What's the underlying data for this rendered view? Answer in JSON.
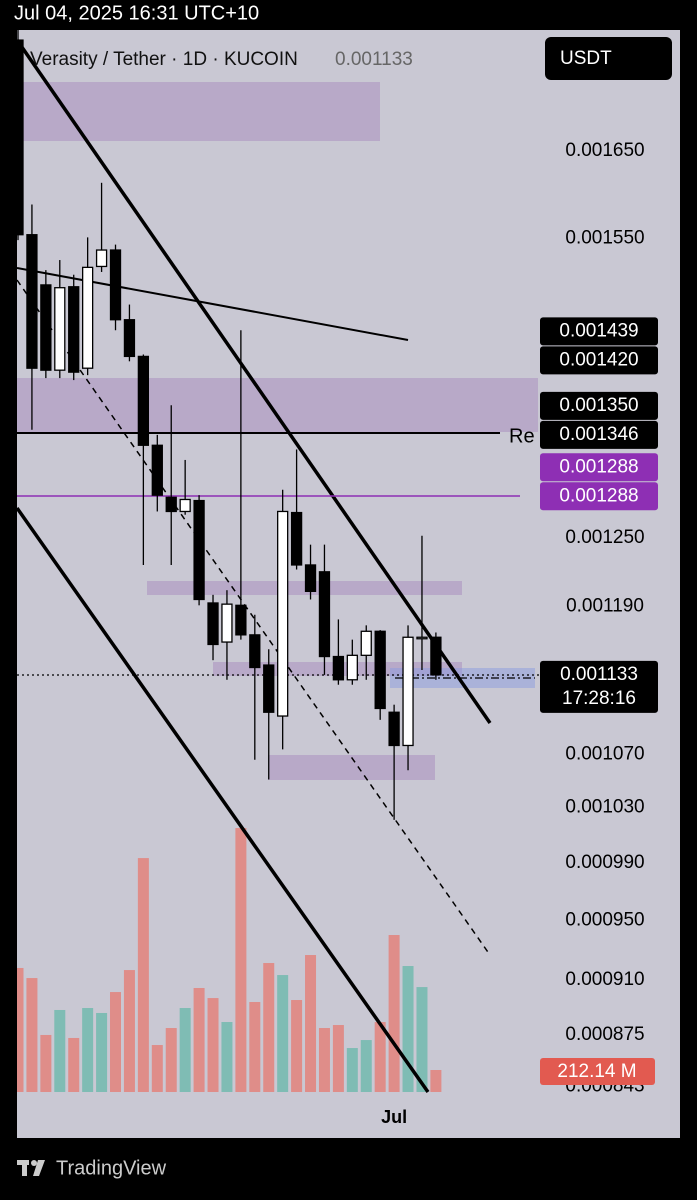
{
  "status_bar": "Jul 04, 2025 16:31 UTC+10",
  "currency_button": "USDT",
  "brand": "TradingView",
  "chart_data": {
    "type": "candlestick",
    "title": "Verasity / Tether · 1D · KUCOIN",
    "last_price": 0.001133,
    "countdown": "17:28:16",
    "annotations": [
      "Re"
    ],
    "y_scale": "log",
    "ylim": [
      0.000835,
      0.0018
    ],
    "yticks": [
      {
        "value": 0.00165,
        "label": "0.001650"
      },
      {
        "value": 0.00155,
        "label": "0.001550"
      },
      {
        "value": 0.00125,
        "label": "0.001250"
      },
      {
        "value": 0.00119,
        "label": "0.001190"
      },
      {
        "value": 0.00107,
        "label": "0.001070"
      },
      {
        "value": 0.00103,
        "label": "0.001030"
      },
      {
        "value": 0.00099,
        "label": "0.000990"
      },
      {
        "value": 0.00095,
        "label": "0.000950"
      },
      {
        "value": 0.00091,
        "label": "0.000910"
      },
      {
        "value": 0.000875,
        "label": "0.000875"
      },
      {
        "value": 0.000843,
        "label": "0.000843"
      }
    ],
    "price_labels": [
      {
        "value": 0.001439,
        "label": "0.001439",
        "color": "#000000"
      },
      {
        "value": 0.00142,
        "label": "0.001420",
        "color": "#000000"
      },
      {
        "value": 0.00135,
        "label": "0.001350",
        "color": "#000000"
      },
      {
        "value": 0.001346,
        "label": "0.001346",
        "color": "#000000"
      },
      {
        "value": 0.001288,
        "label": "0.001288",
        "color": "#8e2fb4"
      },
      {
        "value": 0.001288,
        "label": "0.001288",
        "color": "#8e2fb4"
      }
    ],
    "categories": [
      null,
      null,
      null,
      null,
      null,
      null,
      null,
      null,
      null,
      null,
      null,
      null,
      null,
      null,
      null,
      null,
      null,
      null,
      null,
      null,
      null,
      null,
      null,
      null,
      null,
      null,
      null,
      "Jul",
      null,
      null,
      null
    ],
    "open": [
      0.001787,
      0.001554,
      0.001499,
      0.00141,
      0.001497,
      0.001412,
      0.001519,
      0.001537,
      0.001462,
      0.001424,
      0.001336,
      0.001287,
      0.001274,
      0.001284,
      0.001193,
      0.00116,
      0.001191,
      0.001166,
      0.001141,
      0.0011,
      0.001273,
      0.001226,
      0.00122,
      0.001148,
      0.001129,
      0.001149,
      0.001169,
      0.001103,
      0.001077,
      0.001163,
      0.001164
    ],
    "high": [
      0.0018,
      0.001588,
      0.001515,
      0.001526,
      0.00151,
      0.001551,
      0.001613,
      0.001543,
      0.001478,
      0.001426,
      0.001346,
      0.001375,
      0.001322,
      0.001289,
      0.0012,
      0.001204,
      0.001451,
      0.001183,
      0.001154,
      0.001294,
      0.001332,
      0.001244,
      0.001244,
      0.001179,
      0.001162,
      0.001174,
      0.00117,
      0.001109,
      0.001174,
      0.001252,
      0.001168
    ],
    "low": [
      0.001548,
      0.001351,
      0.001402,
      0.001402,
      0.0014,
      0.001405,
      0.001513,
      0.001451,
      0.001419,
      0.001226,
      0.001274,
      0.001226,
      0.001271,
      0.001191,
      0.001145,
      0.001129,
      0.001162,
      0.001066,
      0.001051,
      0.001074,
      0.001222,
      0.001196,
      0.001133,
      0.001125,
      0.001125,
      0.001129,
      0.001097,
      0.001021,
      0.001058,
      0.001137,
      0.001129
    ],
    "close": [
      0.001554,
      0.001412,
      0.00141,
      0.001496,
      0.001408,
      0.001518,
      0.001537,
      0.001462,
      0.001424,
      0.001336,
      0.001289,
      0.001274,
      0.001285,
      0.001196,
      0.001158,
      0.001192,
      0.001166,
      0.001139,
      0.001103,
      0.001274,
      0.001226,
      0.001203,
      0.001148,
      0.001129,
      0.001149,
      0.001169,
      0.001106,
      0.001077,
      0.001164,
      0.001164,
      0.001133
    ],
    "candle_colors": {
      "up": "#ffffff",
      "down": "#000000"
    },
    "volume": {
      "values": [
        1196,
        1099,
        550,
        791,
        521,
        810,
        762,
        964,
        1176,
        2256,
        453,
        617,
        810,
        1003,
        906,
        675,
        2546,
        868,
        1244,
        1128,
        887,
        1321,
        617,
        646,
        424,
        501,
        675,
        1514,
        1215,
        1012,
        212.14
      ],
      "value_labels": [
        null,
        null,
        null,
        null,
        null,
        null,
        null,
        null,
        null,
        null,
        null,
        null,
        null,
        null,
        null,
        null,
        null,
        null,
        null,
        null,
        null,
        null,
        null,
        null,
        null,
        null,
        null,
        null,
        null,
        null,
        "212.14 M"
      ],
      "colors": {
        "up": "#7fbcb4",
        "down": "#df8d89"
      },
      "label_color": "#e25a50"
    }
  }
}
